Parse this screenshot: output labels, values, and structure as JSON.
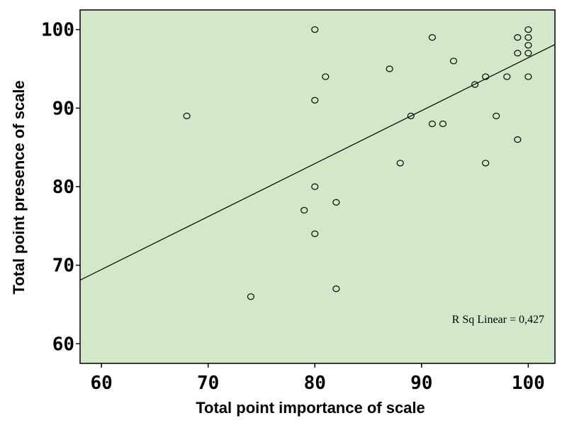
{
  "chart_data": {
    "type": "scatter",
    "xlabel": "Total point importance of scale",
    "ylabel": "Total point presence of scale",
    "xlim": [
      58,
      102.5
    ],
    "ylim": [
      57.5,
      102.5
    ],
    "xticks": [
      60,
      70,
      80,
      90,
      100
    ],
    "yticks": [
      60,
      70,
      80,
      90,
      100
    ],
    "grid": false,
    "background_color": "#d3e8c8",
    "marker_style": "open-circle",
    "annotation": "R Sq Linear = 0,427",
    "fit_line": {
      "x": [
        58,
        102.5
      ],
      "y": [
        68.1,
        98.1
      ]
    },
    "points": [
      {
        "x": 68,
        "y": 89
      },
      {
        "x": 74,
        "y": 66
      },
      {
        "x": 79,
        "y": 77
      },
      {
        "x": 80,
        "y": 100
      },
      {
        "x": 80,
        "y": 91
      },
      {
        "x": 80,
        "y": 80
      },
      {
        "x": 80,
        "y": 74
      },
      {
        "x": 81,
        "y": 94
      },
      {
        "x": 82,
        "y": 78
      },
      {
        "x": 82,
        "y": 67
      },
      {
        "x": 87,
        "y": 95
      },
      {
        "x": 88,
        "y": 83
      },
      {
        "x": 89,
        "y": 89
      },
      {
        "x": 91,
        "y": 99
      },
      {
        "x": 91,
        "y": 88
      },
      {
        "x": 92,
        "y": 88
      },
      {
        "x": 93,
        "y": 96
      },
      {
        "x": 95,
        "y": 93
      },
      {
        "x": 96,
        "y": 94
      },
      {
        "x": 96,
        "y": 83
      },
      {
        "x": 97,
        "y": 89
      },
      {
        "x": 98,
        "y": 94
      },
      {
        "x": 99,
        "y": 99
      },
      {
        "x": 99,
        "y": 97
      },
      {
        "x": 99,
        "y": 86
      },
      {
        "x": 100,
        "y": 100
      },
      {
        "x": 100,
        "y": 99
      },
      {
        "x": 100,
        "y": 98
      },
      {
        "x": 100,
        "y": 97
      },
      {
        "x": 100,
        "y": 94
      }
    ]
  }
}
